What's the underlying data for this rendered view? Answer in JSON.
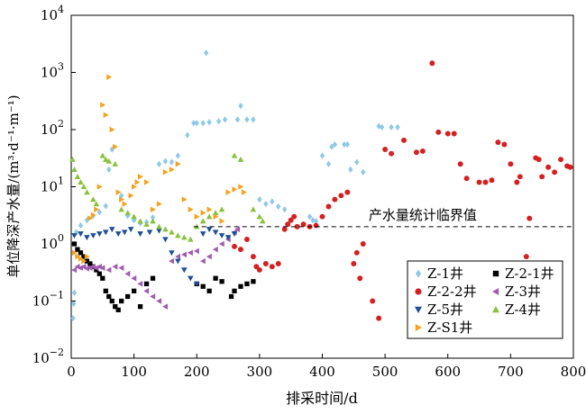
{
  "chart_data": {
    "type": "scatter",
    "title": "",
    "xlabel": "排采时间/d",
    "ylabel": "单位降深产水量/(m³·d⁻¹·m⁻¹)",
    "xlim": [
      0,
      800
    ],
    "ylim": [
      0.01,
      10000
    ],
    "yscale": "log",
    "x_ticks": [
      "0",
      "100",
      "200",
      "300",
      "400",
      "500",
      "600",
      "700",
      "800"
    ],
    "y_ticks": [
      {
        "base": "10",
        "exp": "−2"
      },
      {
        "base": "10",
        "exp": "−1"
      },
      {
        "base": "10",
        "exp": "0"
      },
      {
        "base": "10",
        "exp": "1"
      },
      {
        "base": "10",
        "exp": "2"
      },
      {
        "base": "10",
        "exp": "3"
      },
      {
        "base": "10",
        "exp": "4"
      }
    ],
    "grid": false,
    "legend_position": "bottom-right",
    "reference_line": {
      "y": 2,
      "label": "产水量统计临界值",
      "style": "dashed"
    },
    "series": [
      {
        "name": "Z-1井",
        "color": "#8ec9e6",
        "marker": "diamond",
        "points": [
          [
            3,
            0.05
          ],
          [
            4,
            0.09
          ],
          [
            5,
            0.14
          ],
          [
            8,
            1.6
          ],
          [
            15,
            2.1
          ],
          [
            25,
            2.6
          ],
          [
            35,
            3.1
          ],
          [
            45,
            3.6
          ],
          [
            55,
            4.6
          ],
          [
            60,
            20
          ],
          [
            65,
            45
          ],
          [
            80,
            7
          ],
          [
            90,
            3.1
          ],
          [
            100,
            2.6
          ],
          [
            110,
            2.3
          ],
          [
            120,
            2.4
          ],
          [
            130,
            2.9
          ],
          [
            140,
            25
          ],
          [
            150,
            28
          ],
          [
            160,
            27
          ],
          [
            170,
            35
          ],
          [
            185,
            80
          ],
          [
            195,
            130
          ],
          [
            200,
            130
          ],
          [
            210,
            130
          ],
          [
            215,
            2200
          ],
          [
            220,
            135
          ],
          [
            235,
            140
          ],
          [
            245,
            150
          ],
          [
            265,
            150
          ],
          [
            270,
            260
          ],
          [
            280,
            150
          ],
          [
            290,
            150
          ],
          [
            300,
            6
          ],
          [
            310,
            5
          ],
          [
            320,
            5.5
          ],
          [
            330,
            4.5
          ],
          [
            340,
            4
          ],
          [
            380,
            3
          ],
          [
            385,
            2.6
          ],
          [
            390,
            2.5
          ],
          [
            400,
            35
          ],
          [
            410,
            25
          ],
          [
            415,
            50
          ],
          [
            420,
            55
          ],
          [
            435,
            55
          ],
          [
            440,
            55
          ],
          [
            445,
            20
          ],
          [
            455,
            27
          ],
          [
            465,
            18
          ],
          [
            490,
            115
          ],
          [
            495,
            110
          ],
          [
            510,
            110
          ],
          [
            520,
            110
          ]
        ]
      },
      {
        "name": "Z-2-1井",
        "color": "#000000",
        "marker": "square",
        "points": [
          [
            5,
            1.0
          ],
          [
            10,
            0.8
          ],
          [
            15,
            0.7
          ],
          [
            20,
            0.6
          ],
          [
            25,
            0.5
          ],
          [
            30,
            0.45
          ],
          [
            35,
            0.4
          ],
          [
            40,
            0.35
          ],
          [
            45,
            0.3
          ],
          [
            50,
            0.25
          ],
          [
            55,
            0.15
          ],
          [
            60,
            0.12
          ],
          [
            65,
            0.1
          ],
          [
            70,
            0.08
          ],
          [
            75,
            0.07
          ],
          [
            80,
            0.1
          ],
          [
            90,
            0.12
          ],
          [
            100,
            0.15
          ],
          [
            110,
            0.08
          ],
          [
            120,
            0.2
          ],
          [
            130,
            0.25
          ],
          [
            200,
            0.2
          ],
          [
            210,
            0.18
          ],
          [
            220,
            0.15
          ],
          [
            230,
            0.25
          ],
          [
            240,
            0.22
          ],
          [
            255,
            0.12
          ],
          [
            260,
            0.15
          ],
          [
            270,
            0.18
          ],
          [
            280,
            0.2
          ],
          [
            290,
            0.22
          ]
        ]
      },
      {
        "name": "Z-2-2井",
        "color": "#d42020",
        "marker": "circle",
        "points": [
          [
            260,
            0.9
          ],
          [
            270,
            0.8
          ],
          [
            280,
            1.2
          ],
          [
            290,
            0.6
          ],
          [
            295,
            0.4
          ],
          [
            300,
            0.35
          ],
          [
            310,
            0.45
          ],
          [
            320,
            0.4
          ],
          [
            330,
            0.45
          ],
          [
            340,
            1.8
          ],
          [
            345,
            2.2
          ],
          [
            350,
            2.6
          ],
          [
            355,
            3
          ],
          [
            360,
            2
          ],
          [
            370,
            2.2
          ],
          [
            380,
            2
          ],
          [
            390,
            2.1
          ],
          [
            400,
            3
          ],
          [
            410,
            4.5
          ],
          [
            420,
            6
          ],
          [
            430,
            7
          ],
          [
            440,
            8
          ],
          [
            450,
            0.45
          ],
          [
            455,
            0.7
          ],
          [
            460,
            0.25
          ],
          [
            465,
            1
          ],
          [
            480,
            0.1
          ],
          [
            490,
            0.05
          ],
          [
            500,
            45
          ],
          [
            510,
            38
          ],
          [
            530,
            65
          ],
          [
            550,
            40
          ],
          [
            560,
            42
          ],
          [
            575,
            1450
          ],
          [
            585,
            90
          ],
          [
            600,
            85
          ],
          [
            610,
            85
          ],
          [
            620,
            25
          ],
          [
            630,
            14
          ],
          [
            650,
            12
          ],
          [
            660,
            12
          ],
          [
            670,
            13
          ],
          [
            680,
            60
          ],
          [
            690,
            55
          ],
          [
            700,
            25
          ],
          [
            710,
            12
          ],
          [
            715,
            15
          ],
          [
            720,
            0.15
          ],
          [
            725,
            0.6
          ],
          [
            730,
            2.8
          ],
          [
            740,
            32
          ],
          [
            745,
            30
          ],
          [
            750,
            15
          ],
          [
            760,
            22
          ],
          [
            770,
            18
          ],
          [
            780,
            30
          ],
          [
            790,
            23
          ],
          [
            795,
            22
          ]
        ]
      },
      {
        "name": "Z-3井",
        "color": "#a05cb0",
        "marker": "triangle-left",
        "points": [
          [
            5,
            0.35
          ],
          [
            10,
            0.4
          ],
          [
            15,
            0.38
          ],
          [
            20,
            0.4
          ],
          [
            25,
            0.37
          ],
          [
            30,
            0.38
          ],
          [
            35,
            0.4
          ],
          [
            40,
            0.38
          ],
          [
            45,
            0.4
          ],
          [
            50,
            0.38
          ],
          [
            60,
            0.35
          ],
          [
            70,
            0.4
          ],
          [
            80,
            0.38
          ],
          [
            90,
            0.3
          ],
          [
            100,
            0.25
          ],
          [
            110,
            0.2
          ],
          [
            120,
            0.15
          ],
          [
            130,
            0.12
          ],
          [
            140,
            0.1
          ],
          [
            150,
            0.08
          ],
          [
            160,
            0.5
          ],
          [
            170,
            0.6
          ],
          [
            180,
            0.65
          ],
          [
            190,
            0.7
          ],
          [
            200,
            0.75
          ],
          [
            210,
            0.5
          ],
          [
            220,
            0.6
          ],
          [
            230,
            0.8
          ],
          [
            240,
            1.0
          ],
          [
            250,
            1.2
          ],
          [
            260,
            1.6
          ],
          [
            265,
            1.8
          ]
        ]
      },
      {
        "name": "Z-5井",
        "color": "#1f4f96",
        "marker": "triangle-down",
        "points": [
          [
            5,
            1.4
          ],
          [
            15,
            1.5
          ],
          [
            25,
            1.3
          ],
          [
            35,
            1.4
          ],
          [
            45,
            1.5
          ],
          [
            55,
            1.6
          ],
          [
            65,
            1.8
          ],
          [
            75,
            1.5
          ],
          [
            85,
            1.6
          ],
          [
            95,
            1.8
          ],
          [
            110,
            1.5
          ],
          [
            125,
            1.6
          ],
          [
            140,
            1.7
          ],
          [
            150,
            1.2
          ],
          [
            160,
            0.7
          ],
          [
            170,
            0.5
          ],
          [
            180,
            0.35
          ],
          [
            190,
            0.25
          ],
          [
            200,
            0.2
          ],
          [
            210,
            1.5
          ],
          [
            220,
            1.8
          ],
          [
            230,
            1.6
          ],
          [
            240,
            1.4
          ],
          [
            250,
            1.3
          ],
          [
            260,
            1.5
          ]
        ]
      },
      {
        "name": "Z-4井",
        "color": "#88c23c",
        "marker": "triangle-up",
        "points": [
          [
            2,
            30
          ],
          [
            5,
            20
          ],
          [
            10,
            15
          ],
          [
            15,
            12
          ],
          [
            20,
            10
          ],
          [
            25,
            8
          ],
          [
            35,
            6
          ],
          [
            40,
            5
          ],
          [
            50,
            35
          ],
          [
            55,
            30
          ],
          [
            60,
            28
          ],
          [
            70,
            25
          ],
          [
            80,
            4
          ],
          [
            90,
            3.5
          ],
          [
            100,
            3
          ],
          [
            110,
            2.5
          ],
          [
            120,
            2.2
          ],
          [
            130,
            2.5
          ],
          [
            140,
            2
          ],
          [
            150,
            1.8
          ],
          [
            160,
            1.6
          ],
          [
            170,
            1.4
          ],
          [
            180,
            1.3
          ],
          [
            190,
            1.2
          ],
          [
            200,
            2
          ],
          [
            210,
            2.5
          ],
          [
            220,
            3
          ],
          [
            230,
            3.5
          ],
          [
            240,
            4
          ],
          [
            260,
            35
          ],
          [
            270,
            30
          ],
          [
            290,
            4
          ],
          [
            300,
            3
          ],
          [
            305,
            2.5
          ]
        ]
      },
      {
        "name": "Z-S1井",
        "color": "#f4a21e",
        "marker": "triangle-right",
        "points": [
          [
            5,
            0.7
          ],
          [
            10,
            0.6
          ],
          [
            15,
            0.55
          ],
          [
            20,
            0.5
          ],
          [
            25,
            0.6
          ],
          [
            30,
            2.8
          ],
          [
            35,
            3.2
          ],
          [
            40,
            4
          ],
          [
            45,
            10
          ],
          [
            50,
            270
          ],
          [
            55,
            180
          ],
          [
            60,
            830
          ],
          [
            65,
            100
          ],
          [
            70,
            50
          ],
          [
            75,
            8
          ],
          [
            80,
            6
          ],
          [
            85,
            5
          ],
          [
            95,
            7
          ],
          [
            100,
            10
          ],
          [
            105,
            12
          ],
          [
            110,
            15
          ],
          [
            120,
            12
          ],
          [
            130,
            4
          ],
          [
            140,
            5
          ],
          [
            150,
            18
          ],
          [
            160,
            20
          ],
          [
            170,
            25
          ],
          [
            180,
            6
          ],
          [
            190,
            4
          ],
          [
            200,
            3
          ],
          [
            210,
            3.5
          ],
          [
            220,
            4
          ],
          [
            230,
            3
          ],
          [
            240,
            2.5
          ],
          [
            250,
            8
          ],
          [
            260,
            9
          ],
          [
            270,
            10
          ],
          [
            275,
            8
          ]
        ]
      }
    ]
  }
}
